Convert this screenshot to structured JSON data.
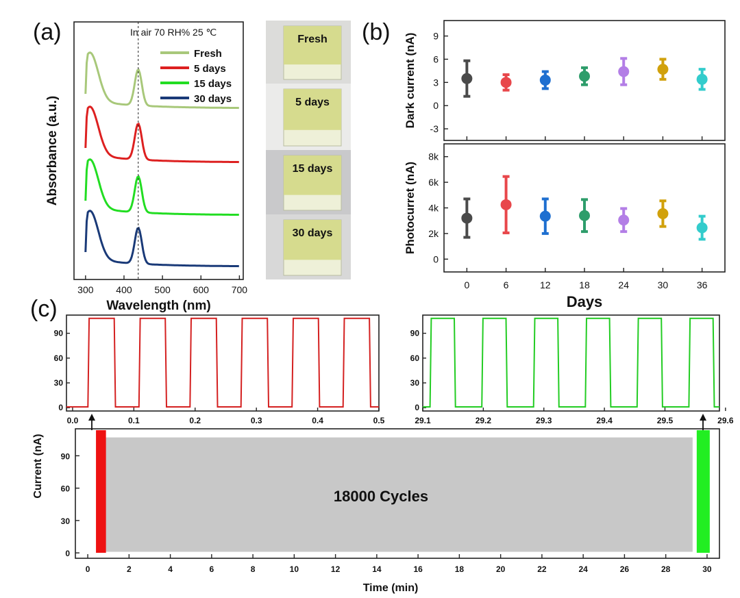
{
  "panels": {
    "a": "(a)",
    "b": "(b)",
    "c": "(c)"
  },
  "chart_data": [
    {
      "id": "absorbance",
      "type": "line",
      "title": "In air 70 RH% 25 ℃",
      "xlabel": "Wavelength (nm)",
      "ylabel": "Absorbance (a.u.)",
      "xlim": [
        270,
        710
      ],
      "xticks": [
        300,
        400,
        500,
        600,
        700
      ],
      "peak_marker_nm": 437,
      "series": [
        {
          "name": "Fresh",
          "color": "#a8c87a",
          "offset": 3
        },
        {
          "name": "5 days",
          "color": "#dd2020",
          "offset": 2
        },
        {
          "name": "15 days",
          "color": "#22dd22",
          "offset": 1
        },
        {
          "name": "30 days",
          "color": "#1a3a78",
          "offset": 0
        }
      ]
    },
    {
      "id": "photos",
      "type": "image",
      "labels": [
        "Fresh",
        "5 days",
        "15 days",
        "30 days"
      ]
    },
    {
      "id": "dark_current",
      "type": "scatter",
      "ylabel": "Dark current (nA)",
      "ylim": [
        -4.5,
        11
      ],
      "yticks": [
        -3,
        0,
        3,
        6,
        9
      ],
      "x": [
        0,
        6,
        12,
        18,
        24,
        30,
        36
      ],
      "values": [
        3.5,
        3.0,
        3.3,
        3.8,
        4.4,
        4.7,
        3.4
      ],
      "errors": [
        2.3,
        1.0,
        1.1,
        1.1,
        1.7,
        1.3,
        1.3
      ],
      "colors": [
        "#4a4a4a",
        "#e8474b",
        "#1e6fd0",
        "#2e9d6b",
        "#b37ee6",
        "#d1a10c",
        "#33cccc"
      ]
    },
    {
      "id": "photocurrent",
      "type": "scatter",
      "ylabel": "Photocurret (nA)",
      "xlabel": "Days",
      "ylim": [
        -1000,
        9000
      ],
      "yticks": [
        0,
        2000,
        4000,
        6000,
        8000
      ],
      "ytick_labels": [
        "0",
        "2k",
        "4k",
        "6k",
        "8k"
      ],
      "x": [
        0,
        6,
        12,
        18,
        24,
        30,
        36
      ],
      "xticks": [
        "0",
        "6",
        "12",
        "18",
        "24",
        "30",
        "36"
      ],
      "values": [
        3200,
        4250,
        3350,
        3400,
        3050,
        3550,
        2450
      ],
      "errors": [
        1500,
        2200,
        1350,
        1250,
        900,
        1000,
        900
      ],
      "colors": [
        "#4a4a4a",
        "#e8474b",
        "#1e6fd0",
        "#2e9d6b",
        "#b37ee6",
        "#d1a10c",
        "#33cccc"
      ]
    },
    {
      "id": "cycles_start",
      "type": "line",
      "color": "#d42020",
      "xlim": [
        -0.01,
        0.5
      ],
      "xticks": [
        0.0,
        0.1,
        0.2,
        0.3,
        0.4,
        0.5
      ],
      "xtick_labels": [
        "0.0",
        "0.1",
        "0.2",
        "0.3",
        "0.4",
        "0.5"
      ],
      "ylim": [
        -4,
        112
      ],
      "yticks": [
        0,
        30,
        60,
        90
      ],
      "on_level": 108,
      "off_level": 1,
      "period": 0.0833,
      "pulse_start": 0.025,
      "pulse_width": 0.043,
      "pulses": 6
    },
    {
      "id": "cycles_end",
      "type": "line",
      "color": "#22cc22",
      "xlim": [
        29.1,
        29.59
      ],
      "xticks": [
        29.1,
        29.2,
        29.3,
        29.4,
        29.5,
        29.6
      ],
      "xtick_labels": [
        "29.1",
        "29.2",
        "29.3",
        "29.4",
        "29.5",
        "29.6"
      ],
      "ylim": [
        -4,
        112
      ],
      "yticks": [
        0,
        30,
        60,
        90
      ],
      "on_level": 108,
      "off_level": 1,
      "period": 0.0855,
      "pulse_start": 29.112,
      "pulse_width": 0.04,
      "pulses": 6
    },
    {
      "id": "cycles_full",
      "type": "area",
      "annotation": "18000 Cycles",
      "xlabel": "Time (min)",
      "ylabel": "Current (nA)",
      "xlim": [
        -0.6,
        30.6
      ],
      "xticks": [
        0,
        2,
        4,
        6,
        8,
        10,
        12,
        14,
        16,
        18,
        20,
        22,
        24,
        26,
        28,
        30
      ],
      "ylim": [
        -5,
        115
      ],
      "yticks": [
        0,
        30,
        60,
        90
      ],
      "band_from": 0.5,
      "band_to": 29.3,
      "band_level": 107,
      "start_window": [
        0.0,
        0.55
      ],
      "end_window": [
        29.3,
        29.6
      ],
      "fill_color": "#c8c8c8",
      "start_color": "#ee1111",
      "end_color": "#22ee22"
    }
  ]
}
